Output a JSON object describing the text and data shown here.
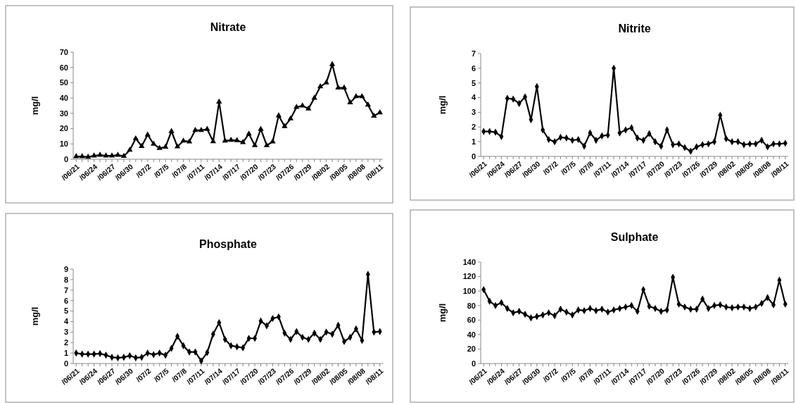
{
  "chart_data": [
    {
      "type": "line",
      "title": "Nitrate",
      "ylabel": "mg/l",
      "marker": "triangle",
      "categories": [
        "/06/21",
        null,
        null,
        "/06/24",
        null,
        null,
        "/06/27",
        null,
        null,
        "/06/30",
        null,
        null,
        "/07/2",
        null,
        null,
        "/07/5",
        null,
        null,
        "/07/8",
        null,
        null,
        "/07/11",
        null,
        null,
        "/07/14",
        null,
        null,
        "/07/17",
        null,
        null,
        "/07/20",
        null,
        null,
        "/07/23",
        null,
        null,
        "/07/26",
        null,
        null,
        "/07/29",
        null,
        null,
        "/08/02",
        null,
        null,
        "/08/05",
        null,
        null,
        "/08/08",
        null,
        null,
        "/08/11"
      ],
      "series": [
        {
          "color": "#000000",
          "values": [
            1.8,
            1.8,
            1.5,
            2.3,
            2.7,
            2.3,
            2.3,
            2.7,
            2.0,
            6,
            13.5,
            8.5,
            16,
            10,
            7.2,
            8,
            18.3,
            8.2,
            12,
            11.5,
            19,
            19,
            19.7,
            11.6,
            37.5,
            12,
            12.5,
            12.3,
            11,
            16.6,
            9,
            19.7,
            9,
            11.5,
            28.5,
            21.5,
            26.5,
            34,
            35,
            33,
            40,
            47.5,
            50,
            62,
            46.7,
            46.7,
            37,
            41,
            41,
            35.5,
            28.3,
            30.5
          ]
        }
      ],
      "ylim": [
        0,
        70
      ],
      "yticks": [
        0,
        10,
        20,
        30,
        40,
        50,
        60,
        70
      ]
    },
    {
      "type": "line",
      "title": "Nitrite",
      "ylabel": "mg/l",
      "marker": "diamond",
      "categories": [
        "/06/21",
        null,
        null,
        "/06/24",
        null,
        null,
        "/06/27",
        null,
        null,
        "/06/30",
        null,
        null,
        "/07/2",
        null,
        null,
        "/07/5",
        null,
        null,
        "/07/8",
        null,
        null,
        "/07/11",
        null,
        null,
        "/07/14",
        null,
        null,
        "/07/17",
        null,
        null,
        "/07/20",
        null,
        null,
        "/07/23",
        null,
        null,
        "/07/26",
        null,
        null,
        "/07/29",
        null,
        null,
        "/08/02",
        null,
        null,
        "/08/05",
        null,
        null,
        "/08/08",
        null,
        null,
        "/08/11"
      ],
      "series": [
        {
          "color": "#000000",
          "values": [
            1.7,
            1.7,
            1.65,
            1.35,
            3.95,
            3.9,
            3.6,
            4.05,
            2.5,
            4.75,
            1.8,
            1.15,
            1.0,
            1.3,
            1.25,
            1.1,
            1.15,
            0.7,
            1.6,
            1.1,
            1.4,
            1.45,
            6.0,
            1.6,
            1.8,
            1.95,
            1.25,
            1.1,
            1.55,
            1.0,
            0.7,
            1.8,
            0.8,
            0.85,
            0.6,
            0.35,
            0.65,
            0.8,
            0.85,
            1.0,
            2.8,
            1.2,
            1.0,
            1.0,
            0.8,
            0.85,
            0.85,
            1.1,
            0.65,
            0.85,
            0.85,
            0.9
          ]
        }
      ],
      "ylim": [
        0,
        7
      ],
      "yticks": [
        0,
        1,
        2,
        3,
        4,
        5,
        6,
        7
      ]
    },
    {
      "type": "line",
      "title": "Phosphate",
      "ylabel": "mg/l",
      "marker": "diamond",
      "categories": [
        "/06/21",
        null,
        null,
        "/06/24",
        null,
        null,
        "/06/27",
        null,
        null,
        "/06/30",
        null,
        null,
        "/07/2",
        null,
        null,
        "/07/5",
        null,
        null,
        "/07/8",
        null,
        null,
        "/07/11",
        null,
        null,
        "/07/14",
        null,
        null,
        "/07/17",
        null,
        null,
        "/07/20",
        null,
        null,
        "/07/23",
        null,
        null,
        "/07/26",
        null,
        null,
        "/07/29",
        null,
        null,
        "/08/02",
        null,
        null,
        "/08/05",
        null,
        null,
        "/08/08",
        null,
        null,
        "/08/11"
      ],
      "series": [
        {
          "color": "#000000",
          "values": [
            1.0,
            0.9,
            0.9,
            0.9,
            0.95,
            0.8,
            0.6,
            0.55,
            0.6,
            0.75,
            0.55,
            0.6,
            1.0,
            0.85,
            1.0,
            0.8,
            1.45,
            2.6,
            1.7,
            1.1,
            1.1,
            0.25,
            1.05,
            2.8,
            3.9,
            2.3,
            1.7,
            1.6,
            1.5,
            2.4,
            2.4,
            4.05,
            3.6,
            4.3,
            4.45,
            2.9,
            2.3,
            3.05,
            2.5,
            2.3,
            2.9,
            2.3,
            3.0,
            2.8,
            3.65,
            2.1,
            2.5,
            3.3,
            2.2,
            8.5,
            3.0,
            3.05
          ]
        }
      ],
      "ylim": [
        0,
        9
      ],
      "yticks": [
        0,
        1,
        2,
        3,
        4,
        5,
        6,
        7,
        8,
        9
      ]
    },
    {
      "type": "line",
      "title": "Sulphate",
      "ylabel": "mg/l",
      "marker": "diamond",
      "categories": [
        "/06/21",
        null,
        null,
        "/06/24",
        null,
        null,
        "/06/27",
        null,
        null,
        "/06/30",
        null,
        null,
        "/07/2",
        null,
        null,
        "/07/5",
        null,
        null,
        "/07/8",
        null,
        null,
        "/07/11",
        null,
        null,
        "/07/14",
        null,
        null,
        "/07/17",
        null,
        null,
        "/07/20",
        null,
        null,
        "/07/23",
        null,
        null,
        "/07/26",
        null,
        null,
        "/07/29",
        null,
        null,
        "/08/02",
        null,
        null,
        "/08/05",
        null,
        null,
        "/08/08",
        null,
        null,
        "/08/11"
      ],
      "series": [
        {
          "color": "#000000",
          "values": [
            102,
            86,
            80,
            84,
            76,
            70,
            72,
            68,
            63,
            65,
            67,
            70,
            66,
            75,
            71,
            67,
            74,
            73,
            76,
            73,
            75,
            71,
            74,
            76,
            78,
            80,
            72,
            102,
            79,
            76,
            72,
            74,
            119,
            82,
            78,
            75,
            75,
            89,
            76,
            80,
            81,
            78,
            77,
            78,
            78,
            76,
            78,
            83,
            91,
            81,
            115,
            82
          ]
        }
      ],
      "ylim": [
        0,
        140
      ],
      "yticks": [
        0,
        20,
        40,
        60,
        80,
        100,
        120,
        140
      ]
    }
  ]
}
